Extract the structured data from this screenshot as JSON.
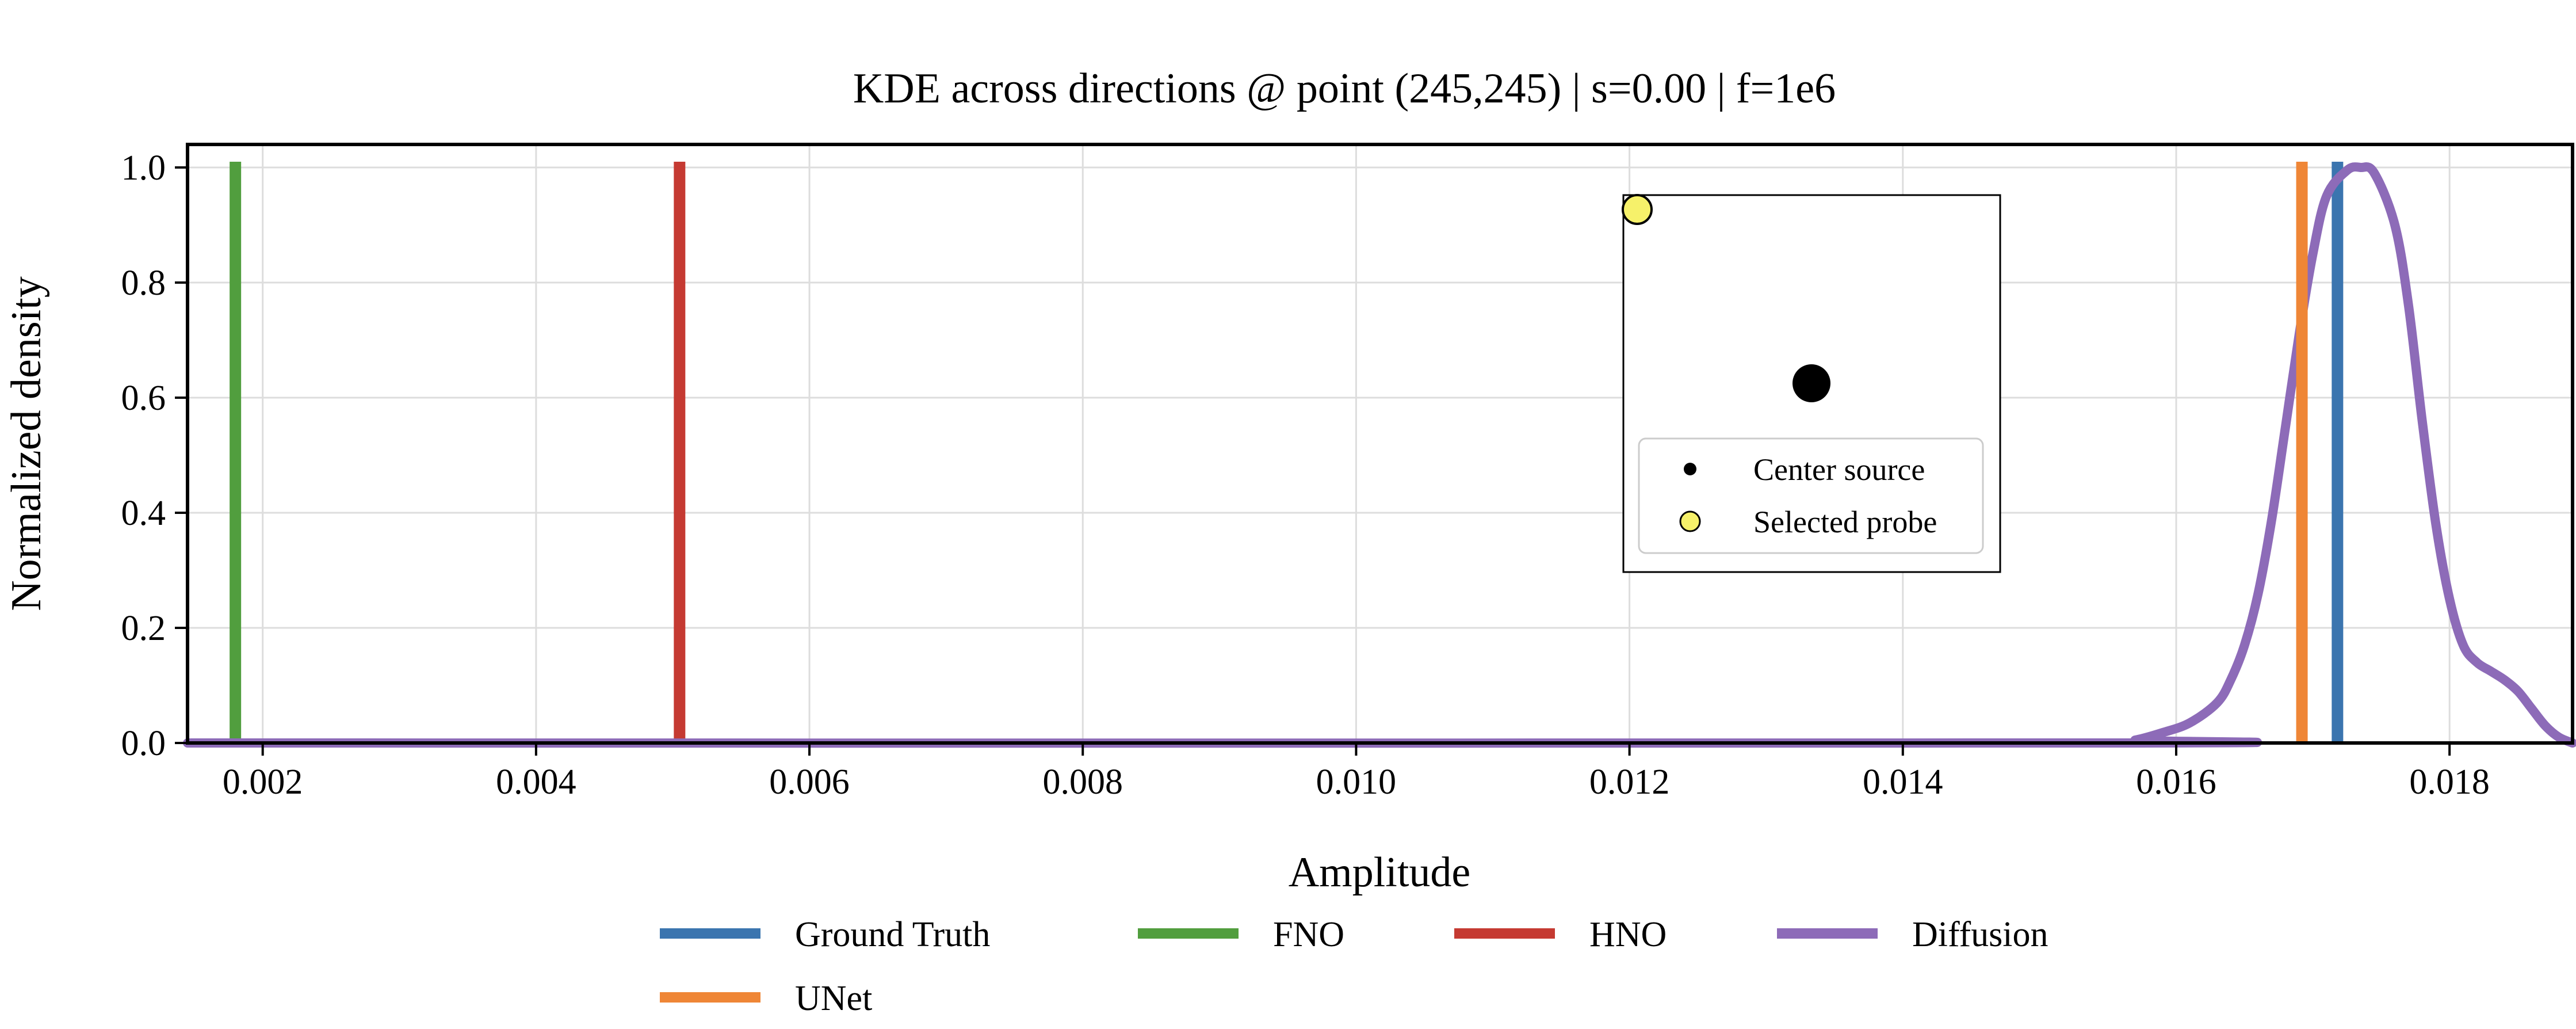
{
  "chart_data": {
    "type": "line",
    "title": "KDE across directions @ point (245,245) | s=0.00 | f=1e6",
    "xlabel": "Amplitude",
    "ylabel": "Normalized density",
    "xlim": [
      0.00145,
      0.0189
    ],
    "ylim": [
      0.0,
      1.04
    ],
    "grid": true,
    "x_ticks": [
      0.002,
      0.004,
      0.006,
      0.008,
      0.01,
      0.012,
      0.014,
      0.016,
      0.018
    ],
    "x_tick_labels": [
      "0.002",
      "0.004",
      "0.006",
      "0.008",
      "0.010",
      "0.012",
      "0.014",
      "0.016",
      "0.018"
    ],
    "y_ticks": [
      0.0,
      0.2,
      0.4,
      0.6,
      0.8,
      1.0
    ],
    "y_tick_labels": [
      "0.0",
      "0.2",
      "0.4",
      "0.6",
      "0.8",
      "1.0"
    ],
    "legend_position": "bottom-center",
    "series": [
      {
        "name": "Ground Truth",
        "kind": "vline",
        "x": 0.01718,
        "color": "#3b75af"
      },
      {
        "name": "FNO",
        "kind": "vline",
        "x": 0.0018,
        "color": "#519e3e"
      },
      {
        "name": "HNO",
        "kind": "vline",
        "x": 0.00505,
        "color": "#c53a32"
      },
      {
        "name": "Diffusion",
        "kind": "curve",
        "color": "#8d6bb8",
        "x": [
          0.00145,
          0.0155,
          0.0157,
          0.0159,
          0.0161,
          0.0163,
          0.0164,
          0.0165,
          0.0166,
          0.0167,
          0.0168,
          0.0169,
          0.017,
          0.0171,
          0.01725,
          0.01735,
          0.01745,
          0.0176,
          0.0177,
          0.0178,
          0.0179,
          0.018,
          0.0181,
          0.0182,
          0.0183,
          0.0184,
          0.0185,
          0.0186,
          0.0187,
          0.0188,
          0.0189
        ],
        "y": [
          0.0,
          0.0,
          0.005,
          0.018,
          0.035,
          0.07,
          0.11,
          0.17,
          0.26,
          0.39,
          0.55,
          0.71,
          0.85,
          0.95,
          0.995,
          1.0,
          0.99,
          0.9,
          0.76,
          0.56,
          0.38,
          0.25,
          0.17,
          0.14,
          0.125,
          0.11,
          0.09,
          0.06,
          0.03,
          0.01,
          0.0
        ]
      },
      {
        "name": "UNet",
        "kind": "vline",
        "x": 0.01692,
        "color": "#ef8636"
      }
    ],
    "inset": {
      "legend_items": [
        {
          "label": "Center source",
          "marker": "black-dot",
          "color": "#000000"
        },
        {
          "label": "Selected probe",
          "marker": "yellow-dot",
          "color": "#f6f16a"
        }
      ]
    }
  }
}
